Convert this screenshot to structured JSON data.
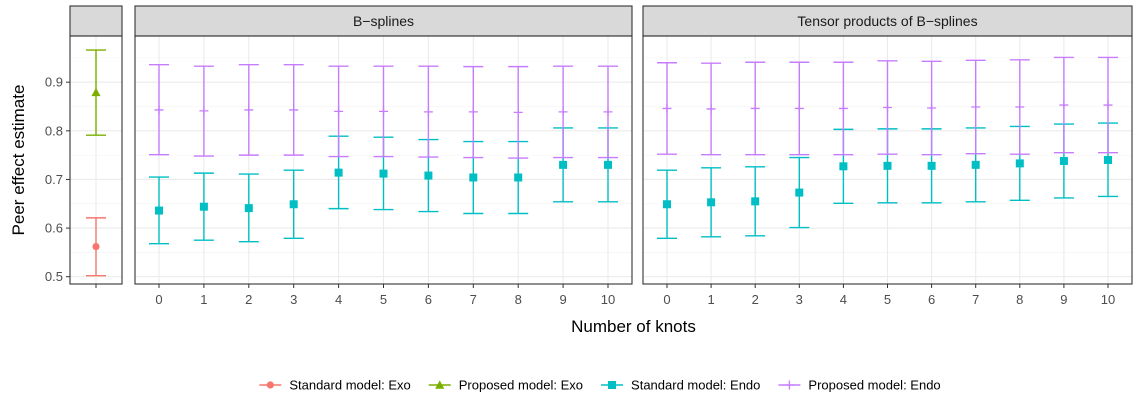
{
  "chart_data": {
    "type": "scatter",
    "ylabel": "Peer effect estimate",
    "xlabel": "Number of knots",
    "ylim": [
      0.485,
      0.995
    ],
    "y_ticks": [
      "0.5",
      "0.6",
      "0.7",
      "0.8",
      "0.9"
    ],
    "grid": true,
    "legend_position": "bottom",
    "panels": [
      {
        "title": "",
        "x_ticks": []
      },
      {
        "title": "B−splines",
        "x_ticks": [
          "0",
          "1",
          "2",
          "3",
          "4",
          "5",
          "6",
          "7",
          "8",
          "9",
          "10"
        ]
      },
      {
        "title": "Tensor products of B−splines",
        "x_ticks": [
          "0",
          "1",
          "2",
          "3",
          "4",
          "5",
          "6",
          "7",
          "8",
          "9",
          "10"
        ]
      }
    ],
    "series": [
      {
        "name": "Standard model: Exo",
        "color": "#F8766D",
        "marker": "circle",
        "panel": 0,
        "points": [
          {
            "x": null,
            "y": 0.562,
            "low": 0.502,
            "high": 0.621
          }
        ]
      },
      {
        "name": "Proposed model: Exo",
        "color": "#7CAE00",
        "marker": "triangle",
        "panel": 0,
        "points": [
          {
            "x": null,
            "y": 0.879,
            "low": 0.791,
            "high": 0.966
          }
        ]
      },
      {
        "name": "Standard model: Endo",
        "color": "#00BFC4",
        "marker": "square",
        "panels": {
          "1": [
            {
              "x": 0,
              "y": 0.636,
              "low": 0.568,
              "high": 0.705
            },
            {
              "x": 1,
              "y": 0.644,
              "low": 0.575,
              "high": 0.713
            },
            {
              "x": 2,
              "y": 0.641,
              "low": 0.572,
              "high": 0.711
            },
            {
              "x": 3,
              "y": 0.649,
              "low": 0.579,
              "high": 0.719
            },
            {
              "x": 4,
              "y": 0.714,
              "low": 0.64,
              "high": 0.789
            },
            {
              "x": 5,
              "y": 0.712,
              "low": 0.638,
              "high": 0.787
            },
            {
              "x": 6,
              "y": 0.708,
              "low": 0.634,
              "high": 0.782
            },
            {
              "x": 7,
              "y": 0.704,
              "low": 0.63,
              "high": 0.778
            },
            {
              "x": 8,
              "y": 0.704,
              "low": 0.63,
              "high": 0.778
            },
            {
              "x": 9,
              "y": 0.73,
              "low": 0.654,
              "high": 0.806
            },
            {
              "x": 10,
              "y": 0.73,
              "low": 0.654,
              "high": 0.806
            }
          ],
          "2": [
            {
              "x": 0,
              "y": 0.649,
              "low": 0.579,
              "high": 0.719
            },
            {
              "x": 1,
              "y": 0.653,
              "low": 0.582,
              "high": 0.724
            },
            {
              "x": 2,
              "y": 0.655,
              "low": 0.584,
              "high": 0.726
            },
            {
              "x": 3,
              "y": 0.673,
              "low": 0.601,
              "high": 0.745
            },
            {
              "x": 4,
              "y": 0.727,
              "low": 0.651,
              "high": 0.803
            },
            {
              "x": 5,
              "y": 0.728,
              "low": 0.652,
              "high": 0.804
            },
            {
              "x": 6,
              "y": 0.728,
              "low": 0.652,
              "high": 0.804
            },
            {
              "x": 7,
              "y": 0.73,
              "low": 0.654,
              "high": 0.806
            },
            {
              "x": 8,
              "y": 0.733,
              "low": 0.657,
              "high": 0.809
            },
            {
              "x": 9,
              "y": 0.738,
              "low": 0.662,
              "high": 0.814
            },
            {
              "x": 10,
              "y": 0.74,
              "low": 0.665,
              "high": 0.816
            }
          ]
        }
      },
      {
        "name": "Proposed model: Endo",
        "color": "#C77CFF",
        "marker": "plus",
        "panels": {
          "1": [
            {
              "x": 0,
              "y": 0.843,
              "low": 0.751,
              "high": 0.936
            },
            {
              "x": 1,
              "y": 0.841,
              "low": 0.748,
              "high": 0.933
            },
            {
              "x": 2,
              "y": 0.843,
              "low": 0.75,
              "high": 0.936
            },
            {
              "x": 3,
              "y": 0.843,
              "low": 0.75,
              "high": 0.936
            },
            {
              "x": 4,
              "y": 0.84,
              "low": 0.747,
              "high": 0.933
            },
            {
              "x": 5,
              "y": 0.84,
              "low": 0.747,
              "high": 0.933
            },
            {
              "x": 6,
              "y": 0.839,
              "low": 0.746,
              "high": 0.933
            },
            {
              "x": 7,
              "y": 0.839,
              "low": 0.745,
              "high": 0.932
            },
            {
              "x": 8,
              "y": 0.838,
              "low": 0.744,
              "high": 0.932
            },
            {
              "x": 9,
              "y": 0.839,
              "low": 0.745,
              "high": 0.933
            },
            {
              "x": 10,
              "y": 0.839,
              "low": 0.745,
              "high": 0.933
            }
          ],
          "2": [
            {
              "x": 0,
              "y": 0.846,
              "low": 0.752,
              "high": 0.94
            },
            {
              "x": 1,
              "y": 0.845,
              "low": 0.751,
              "high": 0.939
            },
            {
              "x": 2,
              "y": 0.846,
              "low": 0.751,
              "high": 0.941
            },
            {
              "x": 3,
              "y": 0.846,
              "low": 0.751,
              "high": 0.941
            },
            {
              "x": 4,
              "y": 0.846,
              "low": 0.751,
              "high": 0.941
            },
            {
              "x": 5,
              "y": 0.848,
              "low": 0.752,
              "high": 0.944
            },
            {
              "x": 6,
              "y": 0.847,
              "low": 0.751,
              "high": 0.943
            },
            {
              "x": 7,
              "y": 0.849,
              "low": 0.753,
              "high": 0.945
            },
            {
              "x": 8,
              "y": 0.849,
              "low": 0.752,
              "high": 0.946
            },
            {
              "x": 9,
              "y": 0.853,
              "low": 0.755,
              "high": 0.951
            },
            {
              "x": 10,
              "y": 0.853,
              "low": 0.755,
              "high": 0.951
            }
          ]
        }
      }
    ]
  }
}
